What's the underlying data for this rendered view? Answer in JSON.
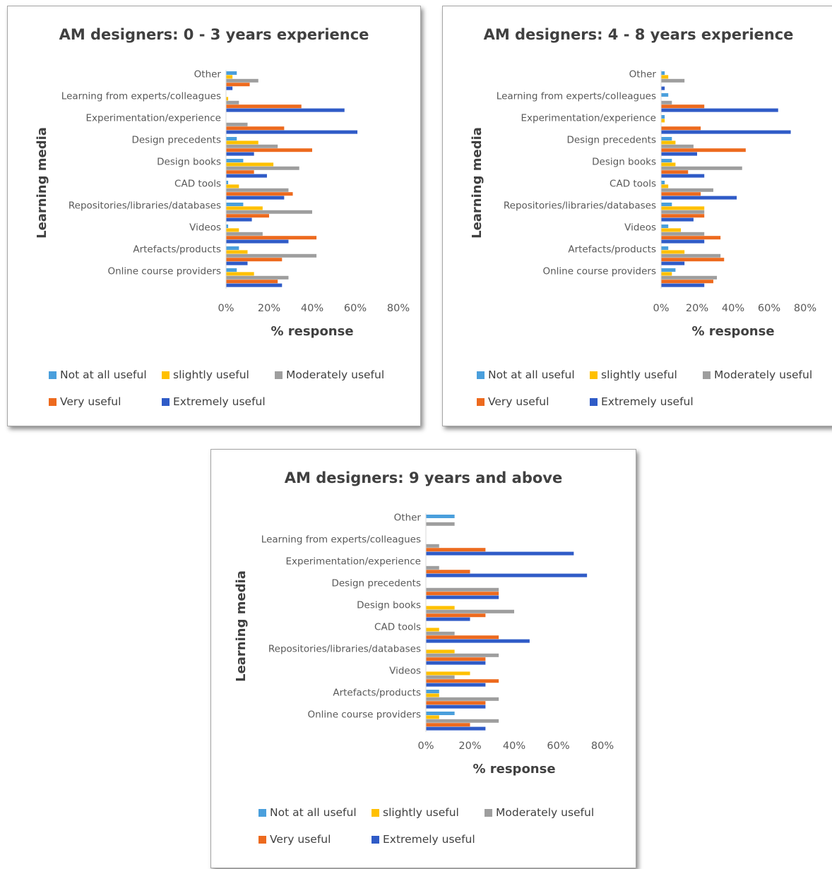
{
  "colors": {
    "not_at_all": "#4a9fdc",
    "slightly": "#ffc000",
    "moderately": "#9e9e9e",
    "very": "#ed6a1e",
    "extremely": "#2f5bc7",
    "axis_text": "#595959",
    "title_text": "#404040"
  },
  "chart_data": [
    {
      "type": "bar",
      "orientation": "horizontal",
      "title": "AM designers: 0 - 3 years experience",
      "xlabel": "% response",
      "ylabel": "Learning media",
      "xlim": [
        0,
        80
      ],
      "xticks": [
        "0%",
        "20%",
        "40%",
        "60%",
        "80%"
      ],
      "grid": false,
      "legend_position": "bottom",
      "categories": [
        "Other",
        "Learning from experts/colleagues",
        "Experimentation/experience",
        "Design precedents",
        "Design books",
        "CAD tools",
        "Repositories/libraries/databases",
        "Videos",
        "Artefacts/products",
        "Online course providers"
      ],
      "series": [
        {
          "name": "Not at all useful",
          "values": [
            5,
            0,
            0,
            5,
            8,
            1,
            8,
            1,
            6,
            5
          ]
        },
        {
          "name": "slightly useful",
          "values": [
            3,
            1,
            0,
            15,
            22,
            6,
            17,
            6,
            10,
            13
          ]
        },
        {
          "name": "Moderately useful",
          "values": [
            15,
            6,
            10,
            24,
            34,
            29,
            40,
            17,
            42,
            29
          ]
        },
        {
          "name": "Very useful",
          "values": [
            11,
            35,
            27,
            40,
            13,
            31,
            20,
            42,
            26,
            24
          ]
        },
        {
          "name": "Extremely useful",
          "values": [
            3,
            55,
            61,
            13,
            19,
            27,
            12,
            29,
            10,
            26
          ]
        }
      ]
    },
    {
      "type": "bar",
      "orientation": "horizontal",
      "title": "AM designers: 4 - 8 years experience",
      "xlabel": "% response",
      "ylabel": "Learning media",
      "xlim": [
        0,
        80
      ],
      "xticks": [
        "0%",
        "20%",
        "40%",
        "60%",
        "80%"
      ],
      "grid": false,
      "legend_position": "bottom",
      "categories": [
        "Other",
        "Learning from experts/colleagues",
        "Experimentation/experience",
        "Design precedents",
        "Design books",
        "CAD tools",
        "Repositories/libraries/databases",
        "Videos",
        "Artefacts/products",
        "Online course providers"
      ],
      "series": [
        {
          "name": "Not at all useful",
          "values": [
            2,
            4,
            2,
            6,
            6,
            2,
            6,
            4,
            4,
            8
          ]
        },
        {
          "name": "slightly useful",
          "values": [
            4,
            0,
            2,
            8,
            8,
            4,
            24,
            11,
            13,
            6
          ]
        },
        {
          "name": "Moderately useful",
          "values": [
            13,
            6,
            0,
            18,
            45,
            29,
            24,
            24,
            33,
            31
          ]
        },
        {
          "name": "Very useful",
          "values": [
            0,
            24,
            22,
            47,
            15,
            22,
            24,
            33,
            35,
            29
          ]
        },
        {
          "name": "Extremely useful",
          "values": [
            2,
            65,
            72,
            20,
            24,
            42,
            18,
            24,
            13,
            24
          ]
        }
      ]
    },
    {
      "type": "bar",
      "orientation": "horizontal",
      "title": "AM designers: 9 years and above",
      "xlabel": "% response",
      "ylabel": "Learning media",
      "xlim": [
        0,
        80
      ],
      "xticks": [
        "0%",
        "20%",
        "40%",
        "60%",
        "80%"
      ],
      "grid": false,
      "legend_position": "bottom",
      "categories": [
        "Other",
        "Learning from experts/colleagues",
        "Experimentation/experience",
        "Design precedents",
        "Design books",
        "CAD tools",
        "Repositories/libraries/databases",
        "Videos",
        "Artefacts/products",
        "Online course providers"
      ],
      "series": [
        {
          "name": "Not at all useful",
          "values": [
            13,
            0,
            0,
            0,
            0,
            0,
            0,
            0,
            6,
            13
          ]
        },
        {
          "name": "slightly useful",
          "values": [
            0,
            0,
            0,
            0,
            13,
            6,
            13,
            20,
            6,
            6
          ]
        },
        {
          "name": "Moderately useful",
          "values": [
            13,
            6,
            6,
            33,
            40,
            13,
            33,
            13,
            33,
            33
          ]
        },
        {
          "name": "Very useful",
          "values": [
            0,
            27,
            20,
            33,
            27,
            33,
            27,
            33,
            27,
            20
          ]
        },
        {
          "name": "Extremely useful",
          "values": [
            0,
            67,
            73,
            33,
            20,
            47,
            27,
            27,
            27,
            27
          ]
        }
      ]
    }
  ]
}
